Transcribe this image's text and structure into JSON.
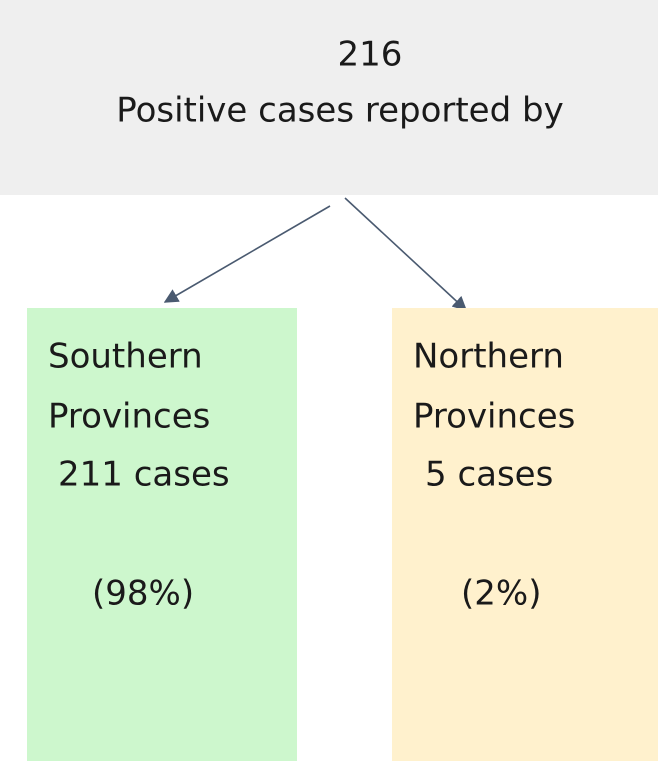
{
  "root": {
    "count": "216",
    "label": "Positive cases reported by"
  },
  "nodes": [
    {
      "name_lines": [
        "Southern",
        "Provinces"
      ],
      "cases": "211 cases",
      "share": "(98%)"
    },
    {
      "name_lines": [
        "Northern",
        "Provinces"
      ],
      "cases": "5 cases",
      "share": "(2%)"
    }
  ]
}
